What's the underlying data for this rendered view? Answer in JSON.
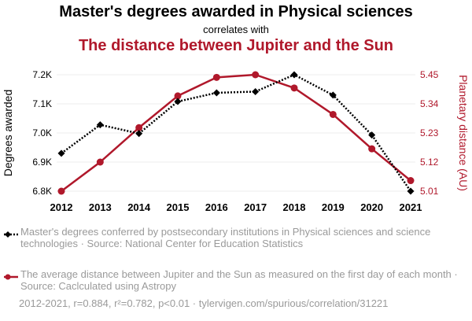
{
  "header": {
    "title": "Master's degrees awarded in Physical sciences",
    "connector": "correlates with",
    "title2": "The distance between Jupiter and the Sun"
  },
  "colors": {
    "series1": "#000000",
    "series2": "#b0182b",
    "grid": "#eeeeee",
    "muted": "#9a9a9a"
  },
  "chart_data": {
    "type": "line",
    "x": [
      2012,
      2013,
      2014,
      2015,
      2016,
      2017,
      2018,
      2019,
      2020,
      2021
    ],
    "series": [
      {
        "name": "Master's degrees conferred by postsecondary institutions in Physical sciences and science technologies",
        "axis": "left",
        "style": "dotted",
        "marker": "diamond",
        "values": [
          6930,
          7028,
          6998,
          7108,
          7138,
          7142,
          7200,
          7130,
          6993,
          6800
        ]
      },
      {
        "name": "The average distance between Jupiter and the Sun as measured on the first day of each month",
        "axis": "right",
        "style": "solid",
        "marker": "circle",
        "values": [
          5.01,
          5.12,
          5.25,
          5.37,
          5.44,
          5.45,
          5.4,
          5.3,
          5.17,
          5.05
        ]
      }
    ],
    "left_axis": {
      "label": "Degrees awarded",
      "ylim": [
        6800,
        7200
      ],
      "ticks": [
        6800,
        6900,
        7000,
        7100,
        7200
      ],
      "tick_labels": [
        "6.8K",
        "6.9K",
        "7.0K",
        "7.1K",
        "7.2K"
      ]
    },
    "right_axis": {
      "label": "Planetary distance (AU)",
      "ylim": [
        5.01,
        5.45
      ],
      "ticks": [
        5.01,
        5.12,
        5.23,
        5.34,
        5.45
      ],
      "tick_labels": [
        "5.01",
        "5.12",
        "5.23",
        "5.34",
        "5.45"
      ]
    },
    "grid": true
  },
  "legend": {
    "series1": "Master's degrees conferred by postsecondary institutions in Physical sciences and science technologies · Source: National Center for Education Statistics",
    "series2": "The average distance between Jupiter and the Sun as measured on the first day of each month · Source: Caclculated using Astropy"
  },
  "footer": "2012-2021, r=0.884, r²=0.782, p<0.01 · tylervigen.com/spurious/correlation/31221"
}
